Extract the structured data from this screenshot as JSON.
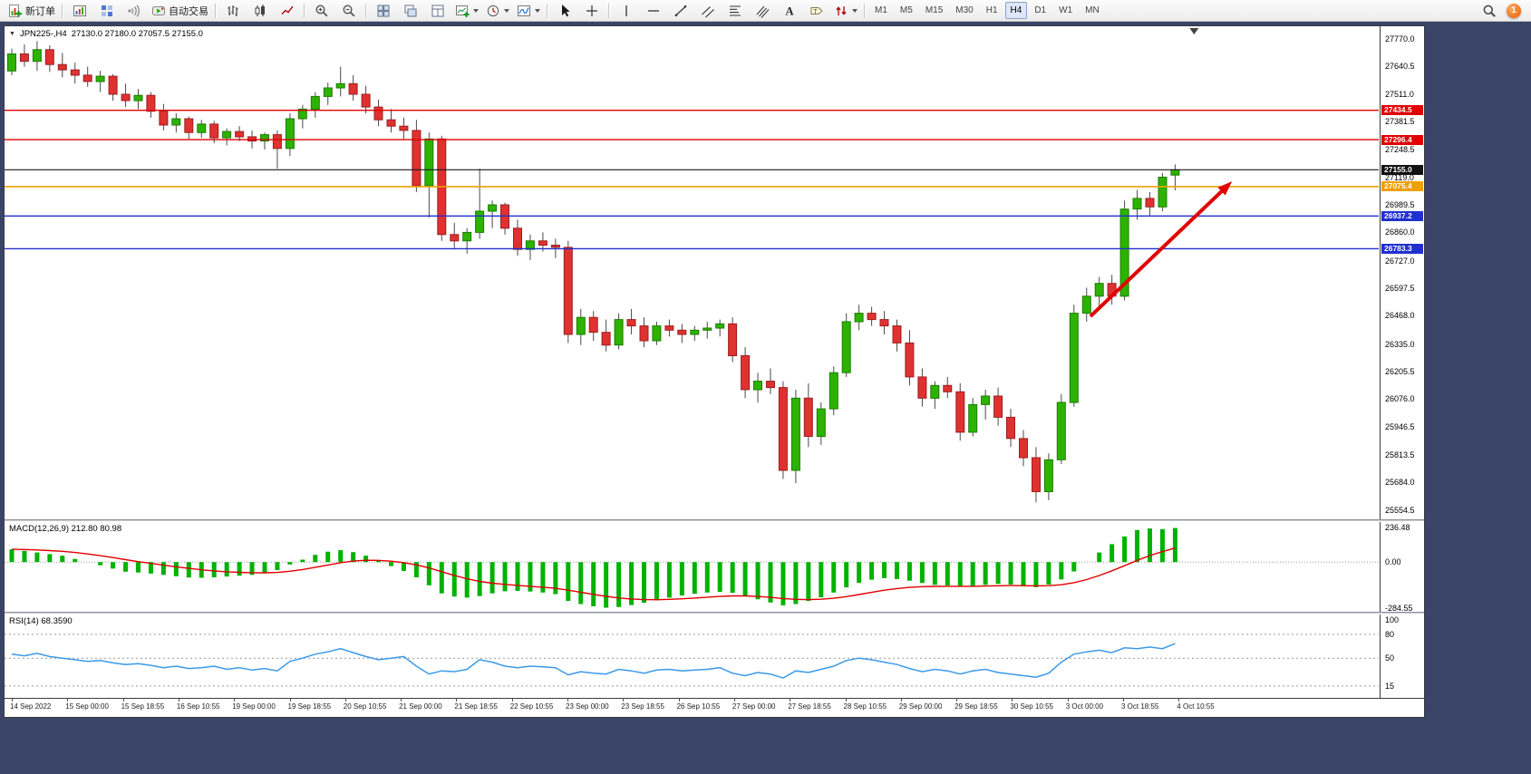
{
  "theme": {
    "frame": "#3a4469",
    "toolbar_bg": "#f0f0f0",
    "chart_bg": "#ffffff"
  },
  "toolbar": {
    "new_order": "新订单",
    "autotrading": "自动交易",
    "timeframes": [
      "M1",
      "M5",
      "M15",
      "M30",
      "H1",
      "H4",
      "D1",
      "W1",
      "MN"
    ],
    "active_timeframe": "H4",
    "notification_badge": "1",
    "items": [
      {
        "kind": "button",
        "name": "new-order-button",
        "icon": "new-order-icon",
        "label": "新订单"
      },
      {
        "kind": "sep"
      },
      {
        "kind": "button",
        "name": "charts-window-button",
        "icon": "chart-window-icon"
      },
      {
        "kind": "button",
        "name": "market-depth-button",
        "icon": "depth-icon"
      },
      {
        "kind": "button",
        "name": "sounds-button",
        "icon": "sound-icon"
      },
      {
        "kind": "button",
        "name": "autotrading-button",
        "icon": "autotrading-icon",
        "label": "自动交易"
      },
      {
        "kind": "sep"
      },
      {
        "kind": "button",
        "name": "bar-chart-type-button",
        "icon": "bar-type-icon"
      },
      {
        "kind": "button",
        "name": "candlestick-type-button",
        "icon": "candle-type-icon"
      },
      {
        "kind": "button",
        "name": "line-chart-type-button",
        "icon": "line-type-icon"
      },
      {
        "kind": "sep"
      },
      {
        "kind": "button",
        "name": "zoom-in-button",
        "icon": "zoom-in-icon"
      },
      {
        "kind": "button",
        "name": "zoom-out-button",
        "icon": "zoom-out-icon"
      },
      {
        "kind": "sep"
      },
      {
        "kind": "button",
        "name": "tile-windows-button",
        "icon": "tile-windows-icon"
      },
      {
        "kind": "button",
        "name": "cascade-windows-button",
        "icon": "cascade-icon"
      },
      {
        "kind": "button",
        "name": "arrange-windows-button",
        "icon": "arrange-icon"
      },
      {
        "kind": "button",
        "name": "new-chart-button",
        "icon": "new-chart-icon",
        "caret": true
      },
      {
        "kind": "button",
        "name": "periods-button",
        "icon": "periods-icon",
        "caret": true
      },
      {
        "kind": "button",
        "name": "indicators-button",
        "icon": "indicators-icon",
        "caret": true
      },
      {
        "kind": "sep"
      },
      {
        "kind": "button",
        "name": "cursor-button",
        "icon": "cursor-icon"
      },
      {
        "kind": "button",
        "name": "crosshair-button",
        "icon": "crosshair-icon"
      },
      {
        "kind": "sep"
      },
      {
        "kind": "button",
        "name": "vertical-line-button",
        "icon": "vline-icon"
      },
      {
        "kind": "button",
        "name": "horizontal-line-button",
        "icon": "hline-icon"
      },
      {
        "kind": "button",
        "name": "trendline-button",
        "icon": "trendline-icon"
      },
      {
        "kind": "button",
        "name": "channel-button",
        "icon": "channel-icon"
      },
      {
        "kind": "button",
        "name": "fibonacci-button",
        "icon": "fibo-icon"
      },
      {
        "kind": "button",
        "name": "pitchfork-button",
        "icon": "pitchfork-icon"
      },
      {
        "kind": "button",
        "name": "text-button",
        "icon": "text-icon"
      },
      {
        "kind": "button",
        "name": "text-label-button",
        "icon": "label-icon"
      },
      {
        "kind": "button",
        "name": "arrows-button",
        "icon": "arrows-icon",
        "caret": true
      },
      {
        "kind": "sep"
      },
      {
        "kind": "timeframes"
      },
      {
        "kind": "spacer"
      },
      {
        "kind": "button",
        "name": "search-button",
        "icon": "search-icon"
      },
      {
        "kind": "badge",
        "name": "notification-badge",
        "label": "1"
      }
    ]
  },
  "chart": {
    "title_symbol": "JPN225-,H4",
    "title_ohlc": "27130.0 27180.0 27057.5 27155.0"
  },
  "chart_data": {
    "type": "candlestick",
    "symbol": "JPN225-",
    "timeframe": "H4",
    "main": {
      "ylim": [
        25510,
        27830
      ],
      "y_ticks": [
        "27770.0",
        "27640.5",
        "27511.0",
        "27381.5",
        "27248.5",
        "27119.0",
        "26989.5",
        "26860.0",
        "26727.0",
        "26597.5",
        "26468.0",
        "26335.0",
        "26205.5",
        "26076.0",
        "25946.5",
        "25813.5",
        "25684.0",
        "25554.5"
      ],
      "colors": {
        "up": "#2DB200",
        "up_border": "#1b7d00",
        "down": "#E03131",
        "down_border": "#9c1f1f",
        "wick": "#4a4a4a"
      },
      "candles": [
        [
          27620,
          27725,
          27600,
          27700
        ],
        [
          27700,
          27745,
          27640,
          27665
        ],
        [
          27665,
          27760,
          27620,
          27720
        ],
        [
          27720,
          27740,
          27615,
          27650
        ],
        [
          27650,
          27705,
          27590,
          27625
        ],
        [
          27625,
          27660,
          27560,
          27600
        ],
        [
          27600,
          27640,
          27545,
          27570
        ],
        [
          27570,
          27620,
          27520,
          27595
        ],
        [
          27595,
          27605,
          27480,
          27510
        ],
        [
          27510,
          27560,
          27450,
          27480
        ],
        [
          27480,
          27535,
          27440,
          27505
        ],
        [
          27505,
          27520,
          27400,
          27430
        ],
        [
          27430,
          27465,
          27340,
          27365
        ],
        [
          27365,
          27420,
          27330,
          27395
        ],
        [
          27395,
          27405,
          27300,
          27330
        ],
        [
          27330,
          27390,
          27305,
          27370
        ],
        [
          27370,
          27385,
          27280,
          27305
        ],
        [
          27305,
          27350,
          27270,
          27335
        ],
        [
          27335,
          27360,
          27290,
          27310
        ],
        [
          27310,
          27340,
          27255,
          27290
        ],
        [
          27290,
          27330,
          27250,
          27320
        ],
        [
          27320,
          27340,
          27160,
          27255
        ],
        [
          27255,
          27420,
          27220,
          27395
        ],
        [
          27395,
          27460,
          27350,
          27440
        ],
        [
          27440,
          27520,
          27400,
          27500
        ],
        [
          27500,
          27565,
          27460,
          27540
        ],
        [
          27540,
          27640,
          27500,
          27560
        ],
        [
          27560,
          27600,
          27480,
          27510
        ],
        [
          27510,
          27550,
          27420,
          27450
        ],
        [
          27450,
          27485,
          27360,
          27390
        ],
        [
          27390,
          27440,
          27330,
          27360
        ],
        [
          27360,
          27400,
          27300,
          27340
        ],
        [
          27340,
          27390,
          27050,
          27080
        ],
        [
          27080,
          27330,
          26930,
          27300
        ],
        [
          27300,
          27315,
          26820,
          26850
        ],
        [
          26850,
          26905,
          26780,
          26820
        ],
        [
          26820,
          26880,
          26760,
          26860
        ],
        [
          26860,
          27160,
          26830,
          26960
        ],
        [
          26960,
          27010,
          26880,
          26990
        ],
        [
          26990,
          27000,
          26850,
          26880
        ],
        [
          26880,
          26920,
          26750,
          26780
        ],
        [
          26780,
          26850,
          26730,
          26820
        ],
        [
          26820,
          26860,
          26770,
          26800
        ],
        [
          26800,
          26830,
          26740,
          26790
        ],
        [
          26790,
          26820,
          26340,
          26380
        ],
        [
          26380,
          26500,
          26330,
          26460
        ],
        [
          26460,
          26490,
          26350,
          26390
        ],
        [
          26390,
          26450,
          26300,
          26330
        ],
        [
          26330,
          26480,
          26310,
          26450
        ],
        [
          26450,
          26500,
          26380,
          26420
        ],
        [
          26420,
          26460,
          26320,
          26350
        ],
        [
          26350,
          26440,
          26330,
          26420
        ],
        [
          26420,
          26450,
          26370,
          26400
        ],
        [
          26400,
          26430,
          26340,
          26380
        ],
        [
          26380,
          26420,
          26350,
          26400
        ],
        [
          26400,
          26440,
          26360,
          26410
        ],
        [
          26410,
          26450,
          26370,
          26430
        ],
        [
          26430,
          26460,
          26250,
          26280
        ],
        [
          26280,
          26320,
          26080,
          26120
        ],
        [
          26120,
          26200,
          26060,
          26160
        ],
        [
          26160,
          26220,
          26100,
          26130
        ],
        [
          26130,
          26160,
          25700,
          25740
        ],
        [
          25740,
          26120,
          25680,
          26080
        ],
        [
          26080,
          26150,
          25850,
          25900
        ],
        [
          25900,
          26060,
          25860,
          26030
        ],
        [
          26030,
          26230,
          26000,
          26200
        ],
        [
          26200,
          26480,
          26180,
          26440
        ],
        [
          26440,
          26520,
          26400,
          26480
        ],
        [
          26480,
          26510,
          26420,
          26450
        ],
        [
          26450,
          26490,
          26380,
          26420
        ],
        [
          26420,
          26450,
          26300,
          26340
        ],
        [
          26340,
          26400,
          26140,
          26180
        ],
        [
          26180,
          26220,
          26040,
          26080
        ],
        [
          26080,
          26160,
          26030,
          26140
        ],
        [
          26140,
          26180,
          26080,
          26110
        ],
        [
          26110,
          26150,
          25880,
          25920
        ],
        [
          25920,
          26080,
          25900,
          26050
        ],
        [
          26050,
          26120,
          25980,
          26090
        ],
        [
          26090,
          26130,
          25950,
          25990
        ],
        [
          25990,
          26030,
          25850,
          25890
        ],
        [
          25890,
          25930,
          25760,
          25800
        ],
        [
          25800,
          25850,
          25590,
          25640
        ],
        [
          25640,
          25820,
          25600,
          25790
        ],
        [
          25790,
          26100,
          25770,
          26060
        ],
        [
          26060,
          26520,
          26040,
          26480
        ],
        [
          26480,
          26600,
          26440,
          26560
        ],
        [
          26560,
          26650,
          26500,
          26620
        ],
        [
          26620,
          26660,
          26520,
          26560
        ],
        [
          26560,
          27010,
          26540,
          26970
        ],
        [
          26970,
          27060,
          26920,
          27020
        ],
        [
          27020,
          27050,
          26940,
          26980
        ],
        [
          26980,
          27140,
          26960,
          27120
        ],
        [
          27130,
          27180,
          27057.5,
          27155
        ]
      ],
      "hlines": [
        {
          "price": 27434.5,
          "color": "#e00000",
          "tag": "27434.5",
          "tag_bg": "#e00000",
          "width": 1.4
        },
        {
          "price": 27296.4,
          "color": "#e00000",
          "tag": "27296.4",
          "tag_bg": "#e00000",
          "width": 1.4
        },
        {
          "price": 27155.0,
          "color": "#1a1a1a",
          "tag": "27155.0",
          "tag_bg": "#111111",
          "width": 1.2
        },
        {
          "price": 27075.4,
          "color": "#f0a000",
          "tag": "27075.4",
          "tag_bg": "#ef9f00",
          "width": 1.6
        },
        {
          "price": 26937.2,
          "color": "#2030d0",
          "tag": "26937.2",
          "tag_bg": "#2030d0",
          "width": 1.4
        },
        {
          "price": 26783.3,
          "color": "#2030d0",
          "tag": "26783.3",
          "tag_bg": "#2030d0",
          "width": 1.4
        }
      ],
      "arrow": {
        "x1_index": 85.3,
        "y1_price": 26465,
        "x2_index": 96.5,
        "y2_price": 27100,
        "color": "#e00000"
      },
      "shift_marker_index": 93.5
    },
    "macd": {
      "label": "MACD(12,26,9) 212.80 80.98",
      "ylim": [
        -310,
        250
      ],
      "y_ticks": [
        "236.48",
        "0.00",
        "-284.55"
      ],
      "tick_values": [
        236.48,
        0,
        -284.55
      ],
      "hist_color": "#00b200",
      "signal_color": "#e00000",
      "hist": [
        80,
        70,
        60,
        50,
        40,
        20,
        0,
        -20,
        -40,
        -60,
        -65,
        -72,
        -80,
        -88,
        -96,
        -98,
        -95,
        -90,
        -85,
        -80,
        -70,
        -50,
        -15,
        15,
        45,
        65,
        75,
        62,
        40,
        10,
        -25,
        -55,
        -95,
        -145,
        -195,
        -215,
        -222,
        -212,
        -195,
        -182,
        -180,
        -184,
        -190,
        -200,
        -242,
        -262,
        -276,
        -284.55,
        -280,
        -268,
        -254,
        -238,
        -222,
        -208,
        -198,
        -190,
        -186,
        -192,
        -212,
        -232,
        -252,
        -270,
        -262,
        -242,
        -220,
        -190,
        -158,
        -130,
        -110,
        -100,
        -106,
        -116,
        -130,
        -142,
        -146,
        -150,
        -151,
        -142,
        -136,
        -140,
        -150,
        -156,
        -140,
        -108,
        -58,
        0,
        60,
        112,
        160,
        200,
        210,
        206,
        212.8
      ]
    },
    "rsi": {
      "label": "RSI(14) 68.3590",
      "ylim": [
        0,
        105
      ],
      "levels": [
        80,
        50,
        15
      ],
      "y_ticks": [
        "100",
        "80",
        "50",
        "15"
      ],
      "tick_values": [
        100,
        80,
        50,
        15
      ],
      "line_color": "#3a9ae8",
      "values": [
        55,
        53,
        56,
        52,
        50,
        48,
        46,
        47,
        44,
        42,
        43,
        41,
        38,
        40,
        37,
        38,
        40,
        36,
        38,
        35,
        37,
        34,
        46,
        50,
        55,
        58,
        62,
        57,
        52,
        48,
        50,
        52,
        40,
        30,
        34,
        33,
        36,
        48,
        45,
        40,
        38,
        40,
        39,
        38,
        29,
        33,
        31,
        30,
        36,
        34,
        31,
        35,
        36,
        34,
        35,
        36,
        38,
        31,
        28,
        32,
        30,
        25,
        34,
        32,
        36,
        40,
        47,
        50,
        48,
        45,
        42,
        37,
        33,
        36,
        34,
        30,
        34,
        36,
        32,
        30,
        28,
        26,
        31,
        45,
        55,
        58,
        60,
        57,
        63,
        62,
        64,
        62,
        68.36
      ]
    },
    "x_labels": [
      "14 Sep 2022",
      "15 Sep 00:00",
      "15 Sep 18:55",
      "16 Sep 10:55",
      "19 Sep 00:00",
      "19 Sep 18:55",
      "20 Sep 10:55",
      "21 Sep 00:00",
      "21 Sep 18:55",
      "22 Sep 10:55",
      "23 Sep 00:00",
      "23 Sep 18:55",
      "26 Sep 10:55",
      "27 Sep 00:00",
      "27 Sep 18:55",
      "28 Sep 10:55",
      "29 Sep 00:00",
      "29 Sep 18:55",
      "30 Sep 10:55",
      "3 Oct 00:00",
      "3 Oct 18:55",
      "4 Oct 10:55"
    ]
  }
}
